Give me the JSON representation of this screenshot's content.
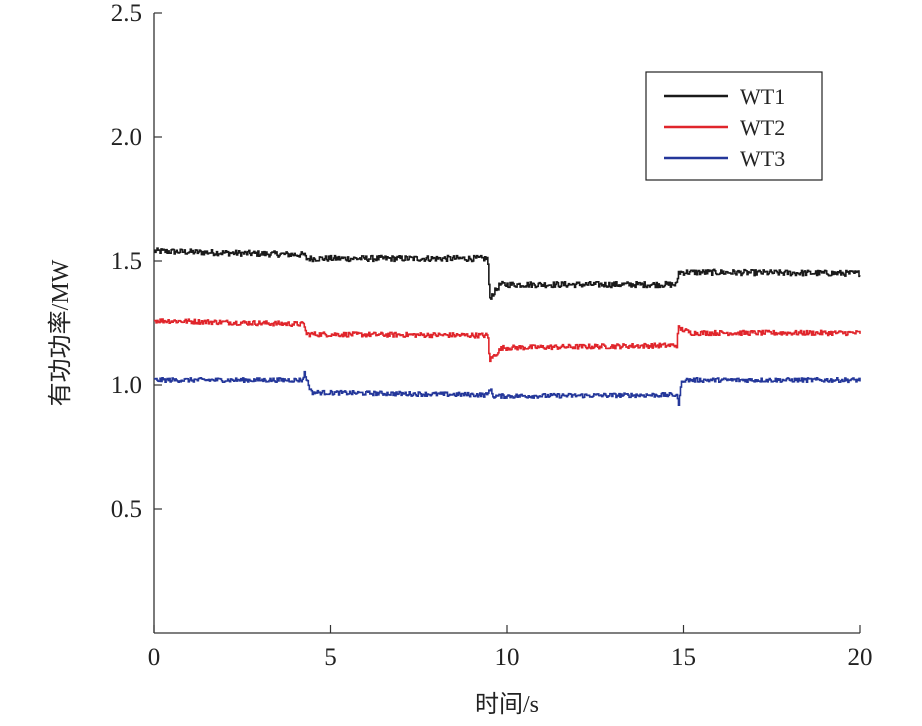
{
  "chart_data": {
    "type": "line",
    "xlabel": "时间/s",
    "ylabel": "有功功率/MW",
    "xlim": [
      0,
      20
    ],
    "ylim": [
      0,
      2.5
    ],
    "xticks": [
      "0",
      "5",
      "10",
      "15",
      "20"
    ],
    "yticks": [
      "0.5",
      "1.0",
      "1.5",
      "2.0",
      "2.5"
    ],
    "grid": false,
    "legend_position": "top-right",
    "series": [
      {
        "name": "WT1",
        "color": "#1a1a1a",
        "points": [
          [
            0,
            1.54
          ],
          [
            4.25,
            1.525
          ],
          [
            4.3,
            1.51
          ],
          [
            9.45,
            1.51
          ],
          [
            9.5,
            1.35
          ],
          [
            9.8,
            1.405
          ],
          [
            14.8,
            1.405
          ],
          [
            14.85,
            1.455
          ],
          [
            20,
            1.45
          ]
        ],
        "noise": 0.012
      },
      {
        "name": "WT2",
        "color": "#e0252b",
        "points": [
          [
            0,
            1.26
          ],
          [
            4.25,
            1.245
          ],
          [
            4.3,
            1.205
          ],
          [
            9.45,
            1.2
          ],
          [
            9.5,
            1.1
          ],
          [
            9.85,
            1.15
          ],
          [
            14.8,
            1.16
          ],
          [
            14.85,
            1.23
          ],
          [
            15.2,
            1.21
          ],
          [
            20,
            1.21
          ]
        ],
        "noise": 0.01
      },
      {
        "name": "WT3",
        "color": "#24379a",
        "points": [
          [
            0,
            1.02
          ],
          [
            4.2,
            1.02
          ],
          [
            4.25,
            1.05
          ],
          [
            4.45,
            0.97
          ],
          [
            9.45,
            0.96
          ],
          [
            9.5,
            0.99
          ],
          [
            9.6,
            0.955
          ],
          [
            14.8,
            0.96
          ],
          [
            14.85,
            0.92
          ],
          [
            14.95,
            1.02
          ],
          [
            20,
            1.02
          ]
        ],
        "noise": 0.009
      }
    ]
  }
}
